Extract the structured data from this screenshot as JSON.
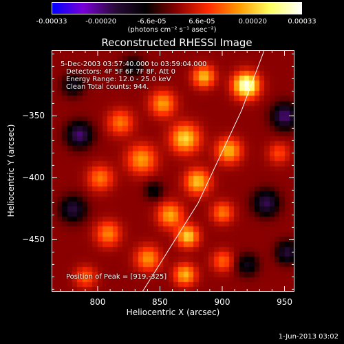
{
  "chart_data": {
    "type": "heatmap",
    "title": "Reconstructed RHESSI Image",
    "xlabel": "Heliocentric X (arcsec)",
    "ylabel": "Heliocentric Y (arcsec)",
    "xlim": [
      763,
      958
    ],
    "ylim": [
      -492,
      -297
    ],
    "x_ticks": [
      800,
      850,
      900,
      950
    ],
    "y_ticks": [
      -350,
      -400,
      -450
    ],
    "colorbar": {
      "ticks": [
        "-0.00033",
        "-0.00020",
        "-6.6e-05",
        "6.6e-05",
        "0.00020",
        "0.00033"
      ],
      "units_line": "(photons cm⁻² s⁻¹ asec⁻²)",
      "range": [
        -0.00033,
        0.00033
      ],
      "colormap": [
        "#0000ff",
        "#7a00d6",
        "#2a0a3a",
        "#000000",
        "#8a0000",
        "#ff2a00",
        "#ff9a00",
        "#ffff60",
        "#ffffff"
      ]
    },
    "annotations": {
      "time_range": "5-Dec-2003 03:57:40.000 to 03:59:04.000",
      "detectors": "Detectors: 4F 5F 6F 7F 8F, Att 0",
      "energy": "Energy Range: 12.0 - 25.0 keV",
      "method": "Clean    Total counts: 944.",
      "peak": "Position of Peak = [919,-325]"
    },
    "peak": {
      "x": 919,
      "y": -325
    },
    "sources": [
      {
        "x": 919,
        "y": -325,
        "amp": 0.00033,
        "sigma": 7
      },
      {
        "x": 885,
        "y": -318,
        "amp": 0.0002,
        "sigma": 6
      },
      {
        "x": 852,
        "y": -340,
        "amp": 0.00017,
        "sigma": 7
      },
      {
        "x": 870,
        "y": -368,
        "amp": 0.00022,
        "sigma": 8
      },
      {
        "x": 905,
        "y": -378,
        "amp": 0.00019,
        "sigma": 7
      },
      {
        "x": 818,
        "y": -355,
        "amp": 0.00014,
        "sigma": 7
      },
      {
        "x": 835,
        "y": -385,
        "amp": 0.00017,
        "sigma": 8
      },
      {
        "x": 880,
        "y": -403,
        "amp": 0.0002,
        "sigma": 7
      },
      {
        "x": 802,
        "y": -400,
        "amp": 0.00014,
        "sigma": 7
      },
      {
        "x": 858,
        "y": -430,
        "amp": 0.00018,
        "sigma": 7
      },
      {
        "x": 900,
        "y": -428,
        "amp": 0.00014,
        "sigma": 6
      },
      {
        "x": 872,
        "y": -447,
        "amp": 0.00022,
        "sigma": 6
      },
      {
        "x": 808,
        "y": -445,
        "amp": 0.00015,
        "sigma": 7
      },
      {
        "x": 840,
        "y": -465,
        "amp": 0.00016,
        "sigma": 7
      },
      {
        "x": 870,
        "y": -478,
        "amp": 0.00019,
        "sigma": 6
      },
      {
        "x": 900,
        "y": -467,
        "amp": 0.00012,
        "sigma": 6
      },
      {
        "x": 790,
        "y": -480,
        "amp": 0.00012,
        "sigma": 6
      },
      {
        "x": 945,
        "y": -380,
        "amp": 0.0001,
        "sigma": 6
      },
      {
        "x": 785,
        "y": -365,
        "amp": -0.0002,
        "sigma": 7
      },
      {
        "x": 780,
        "y": -325,
        "amp": -0.00012,
        "sigma": 6
      },
      {
        "x": 950,
        "y": -350,
        "amp": -0.0002,
        "sigma": 7
      },
      {
        "x": 935,
        "y": -420,
        "amp": -0.00018,
        "sigma": 7
      },
      {
        "x": 952,
        "y": -460,
        "amp": -0.00016,
        "sigma": 6
      },
      {
        "x": 828,
        "y": -310,
        "amp": -0.0001,
        "sigma": 6
      },
      {
        "x": 780,
        "y": -425,
        "amp": -0.00016,
        "sigma": 7
      },
      {
        "x": 845,
        "y": -410,
        "amp": -0.0001,
        "sigma": 5
      },
      {
        "x": 920,
        "y": -470,
        "amp": -0.00012,
        "sigma": 6
      }
    ],
    "limb_curve": [
      {
        "x": 835,
        "y": -492
      },
      {
        "x": 880,
        "y": -420
      },
      {
        "x": 915,
        "y": -345
      },
      {
        "x": 933,
        "y": -297
      }
    ]
  },
  "timestamp": "1-Jun-2013 03:02"
}
